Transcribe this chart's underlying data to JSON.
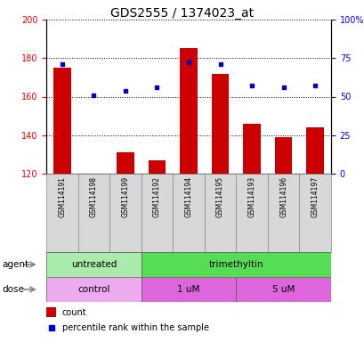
{
  "title": "GDS2555 / 1374023_at",
  "samples": [
    "GSM114191",
    "GSM114198",
    "GSM114199",
    "GSM114192",
    "GSM114194",
    "GSM114195",
    "GSM114193",
    "GSM114196",
    "GSM114197"
  ],
  "count_values": [
    175,
    120,
    131,
    127,
    185,
    172,
    146,
    139,
    144
  ],
  "percentile_values": [
    71,
    51,
    54,
    56,
    72,
    71,
    57,
    56,
    57
  ],
  "ylim_left": [
    120,
    200
  ],
  "ylim_right": [
    0,
    100
  ],
  "yticks_left": [
    120,
    140,
    160,
    180,
    200
  ],
  "yticks_right": [
    0,
    25,
    50,
    75,
    100
  ],
  "bar_color": "#cc0000",
  "dot_color": "#0000cc",
  "bar_width": 0.55,
  "agent_groups": [
    {
      "label": "untreated",
      "start": 0,
      "end": 3,
      "color": "#aaeaaa"
    },
    {
      "label": "trimethyltin",
      "start": 3,
      "end": 9,
      "color": "#55dd55"
    }
  ],
  "dose_groups": [
    {
      "label": "control",
      "start": 0,
      "end": 3,
      "color": "#eeaaee"
    },
    {
      "label": "1 uM",
      "start": 3,
      "end": 6,
      "color": "#dd66dd"
    },
    {
      "label": "5 uM",
      "start": 6,
      "end": 9,
      "color": "#dd66dd"
    }
  ],
  "legend_count_label": "count",
  "legend_percentile_label": "percentile rank within the sample",
  "agent_label": "agent",
  "dose_label": "dose",
  "title_fontsize": 10,
  "tick_fontsize": 7,
  "xlabel_fontsize": 5.5
}
